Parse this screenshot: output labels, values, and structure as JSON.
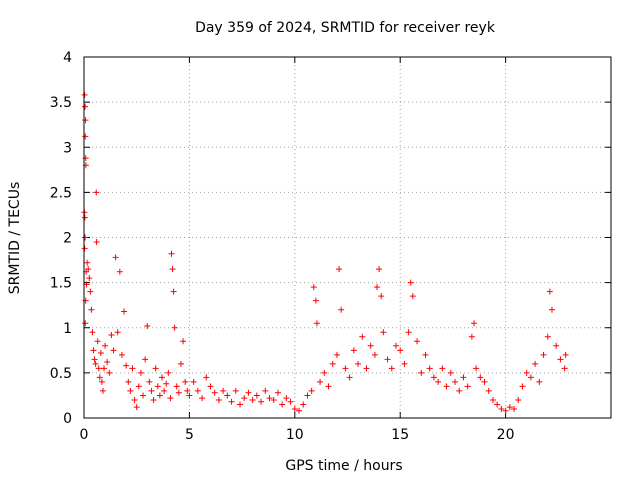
{
  "chart_data": {
    "type": "scatter",
    "title": "Day 359 of 2024, SRMTID for receiver reyk",
    "xlabel": "GPS time / hours",
    "ylabel": "SRMTID / TECUs",
    "xlim": [
      0,
      25
    ],
    "ylim": [
      0,
      4
    ],
    "xticks": [
      0,
      5,
      10,
      15,
      20
    ],
    "yticks": [
      0,
      0.5,
      1,
      1.5,
      2,
      2.5,
      3,
      3.5,
      4
    ],
    "xtick_labels": [
      "0",
      "5",
      "10",
      "15",
      "20"
    ],
    "ytick_labels": [
      "0",
      "0.5",
      "1",
      "1.5",
      "2",
      "2.5",
      "3",
      "3.5",
      "4"
    ],
    "grid": true,
    "marker": "+",
    "color": "#ff0000",
    "series": [
      {
        "name": "SRMTID",
        "points": [
          [
            0.03,
            3.58
          ],
          [
            0.05,
            3.45
          ],
          [
            0.07,
            3.3
          ],
          [
            0.06,
            3.12
          ],
          [
            0.08,
            2.88
          ],
          [
            0.09,
            2.8
          ],
          [
            0.02,
            2.28
          ],
          [
            0.04,
            2.22
          ],
          [
            0.05,
            2.0
          ],
          [
            0.03,
            1.88
          ],
          [
            0.1,
            1.62
          ],
          [
            0.12,
            1.48
          ],
          [
            0.08,
            1.3
          ],
          [
            0.06,
            1.05
          ],
          [
            0.15,
            1.72
          ],
          [
            0.2,
            1.65
          ],
          [
            0.25,
            1.55
          ],
          [
            0.3,
            1.4
          ],
          [
            0.35,
            1.2
          ],
          [
            0.4,
            0.95
          ],
          [
            0.45,
            0.75
          ],
          [
            0.5,
            0.65
          ],
          [
            0.55,
            0.6
          ],
          [
            0.58,
            2.5
          ],
          [
            0.6,
            1.95
          ],
          [
            0.65,
            0.85
          ],
          [
            0.7,
            0.55
          ],
          [
            0.75,
            0.45
          ],
          [
            0.8,
            0.72
          ],
          [
            0.85,
            0.4
          ],
          [
            0.9,
            0.3
          ],
          [
            0.95,
            0.55
          ],
          [
            1.0,
            0.8
          ],
          [
            1.1,
            0.62
          ],
          [
            1.2,
            0.5
          ],
          [
            1.3,
            0.92
          ],
          [
            1.4,
            0.75
          ],
          [
            1.5,
            1.78
          ],
          [
            1.6,
            0.95
          ],
          [
            1.7,
            1.62
          ],
          [
            1.8,
            0.7
          ],
          [
            1.9,
            1.18
          ],
          [
            2.0,
            0.58
          ],
          [
            2.1,
            0.4
          ],
          [
            2.2,
            0.3
          ],
          [
            2.3,
            0.55
          ],
          [
            2.4,
            0.2
          ],
          [
            2.5,
            0.12
          ],
          [
            2.6,
            0.35
          ],
          [
            2.7,
            0.5
          ],
          [
            2.8,
            0.25
          ],
          [
            2.9,
            0.65
          ],
          [
            3.0,
            1.02
          ],
          [
            3.1,
            0.4
          ],
          [
            3.2,
            0.3
          ],
          [
            3.3,
            0.2
          ],
          [
            3.4,
            0.55
          ],
          [
            3.5,
            0.35
          ],
          [
            3.6,
            0.25
          ],
          [
            3.7,
            0.45
          ],
          [
            3.8,
            0.3
          ],
          [
            3.9,
            0.38
          ],
          [
            4.0,
            0.5
          ],
          [
            4.1,
            0.22
          ],
          [
            4.15,
            1.82
          ],
          [
            4.2,
            1.65
          ],
          [
            4.25,
            1.4
          ],
          [
            4.3,
            1.0
          ],
          [
            4.4,
            0.35
          ],
          [
            4.5,
            0.28
          ],
          [
            4.6,
            0.6
          ],
          [
            4.7,
            0.85
          ],
          [
            4.8,
            0.4
          ],
          [
            4.9,
            0.3
          ],
          [
            5.0,
            0.25
          ],
          [
            5.2,
            0.4
          ],
          [
            5.4,
            0.3
          ],
          [
            5.6,
            0.22
          ],
          [
            5.8,
            0.45
          ],
          [
            6.0,
            0.35
          ],
          [
            6.2,
            0.28
          ],
          [
            6.4,
            0.2
          ],
          [
            6.6,
            0.3
          ],
          [
            6.8,
            0.25
          ],
          [
            7.0,
            0.18
          ],
          [
            7.2,
            0.3
          ],
          [
            7.4,
            0.15
          ],
          [
            7.6,
            0.22
          ],
          [
            7.8,
            0.28
          ],
          [
            8.0,
            0.2
          ],
          [
            8.2,
            0.25
          ],
          [
            8.4,
            0.18
          ],
          [
            8.6,
            0.3
          ],
          [
            8.8,
            0.22
          ],
          [
            9.0,
            0.2
          ],
          [
            9.2,
            0.28
          ],
          [
            9.4,
            0.15
          ],
          [
            9.6,
            0.22
          ],
          [
            9.8,
            0.18
          ],
          [
            10.0,
            0.1
          ],
          [
            10.2,
            0.08
          ],
          [
            10.4,
            0.15
          ],
          [
            10.6,
            0.25
          ],
          [
            10.8,
            0.3
          ],
          [
            10.9,
            1.45
          ],
          [
            11.0,
            1.3
          ],
          [
            11.05,
            1.05
          ],
          [
            11.2,
            0.4
          ],
          [
            11.4,
            0.5
          ],
          [
            11.6,
            0.35
          ],
          [
            11.8,
            0.6
          ],
          [
            12.0,
            0.7
          ],
          [
            12.1,
            1.65
          ],
          [
            12.2,
            1.2
          ],
          [
            12.4,
            0.55
          ],
          [
            12.6,
            0.45
          ],
          [
            12.8,
            0.75
          ],
          [
            13.0,
            0.6
          ],
          [
            13.2,
            0.9
          ],
          [
            13.4,
            0.55
          ],
          [
            13.6,
            0.8
          ],
          [
            13.8,
            0.7
          ],
          [
            13.9,
            1.45
          ],
          [
            14.0,
            1.65
          ],
          [
            14.1,
            1.35
          ],
          [
            14.2,
            0.95
          ],
          [
            14.4,
            0.65
          ],
          [
            14.6,
            0.55
          ],
          [
            14.8,
            0.8
          ],
          [
            15.0,
            0.75
          ],
          [
            15.2,
            0.6
          ],
          [
            15.4,
            0.95
          ],
          [
            15.5,
            1.5
          ],
          [
            15.6,
            1.35
          ],
          [
            15.8,
            0.85
          ],
          [
            16.0,
            0.5
          ],
          [
            16.2,
            0.7
          ],
          [
            16.4,
            0.55
          ],
          [
            16.6,
            0.45
          ],
          [
            16.8,
            0.4
          ],
          [
            17.0,
            0.55
          ],
          [
            17.2,
            0.35
          ],
          [
            17.4,
            0.5
          ],
          [
            17.6,
            0.4
          ],
          [
            17.8,
            0.3
          ],
          [
            18.0,
            0.45
          ],
          [
            18.2,
            0.35
          ],
          [
            18.4,
            0.9
          ],
          [
            18.5,
            1.05
          ],
          [
            18.6,
            0.55
          ],
          [
            18.8,
            0.45
          ],
          [
            19.0,
            0.4
          ],
          [
            19.2,
            0.3
          ],
          [
            19.4,
            0.2
          ],
          [
            19.6,
            0.15
          ],
          [
            19.8,
            0.1
          ],
          [
            20.0,
            0.08
          ],
          [
            20.2,
            0.12
          ],
          [
            20.4,
            0.1
          ],
          [
            20.6,
            0.2
          ],
          [
            20.8,
            0.35
          ],
          [
            21.0,
            0.5
          ],
          [
            21.2,
            0.45
          ],
          [
            21.4,
            0.6
          ],
          [
            21.6,
            0.4
          ],
          [
            21.8,
            0.7
          ],
          [
            22.0,
            0.9
          ],
          [
            22.1,
            1.4
          ],
          [
            22.2,
            1.2
          ],
          [
            22.4,
            0.8
          ],
          [
            22.6,
            0.65
          ],
          [
            22.8,
            0.55
          ],
          [
            22.85,
            0.7
          ]
        ]
      }
    ]
  }
}
